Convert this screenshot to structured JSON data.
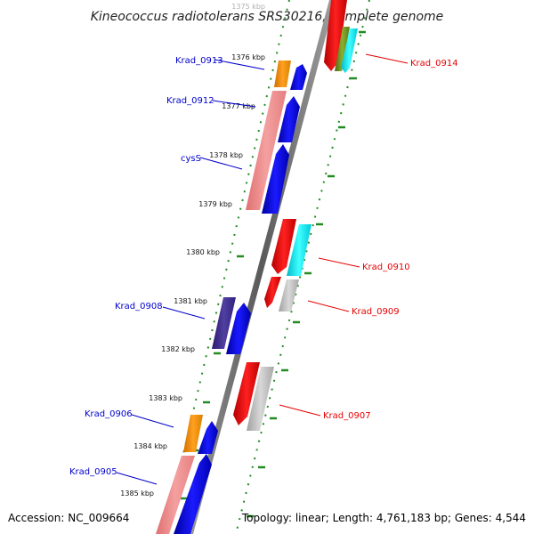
{
  "title": "Kineococcus radiotolerans SRS30216, complete genome",
  "accession": "Accession: NC_009664",
  "topology": "Topology: linear; Length: 4,761,183 bp; Genes: 4,544",
  "colors": {
    "forward_label": "#0000cc",
    "reverse_label": "#e60000",
    "tick": "#228b22",
    "backbone": "#808080"
  },
  "kbp_ticks": [
    {
      "id": "1375",
      "label": "1375 kbp"
    },
    {
      "id": "1376",
      "label": "1376 kbp"
    },
    {
      "id": "1377",
      "label": "1377 kbp"
    },
    {
      "id": "1378",
      "label": "1378 kbp"
    },
    {
      "id": "1379",
      "label": "1379 kbp"
    },
    {
      "id": "1380",
      "label": "1380 kbp"
    },
    {
      "id": "1381",
      "label": "1381 kbp"
    },
    {
      "id": "1382",
      "label": "1382 kbp"
    },
    {
      "id": "1383",
      "label": "1383 kbp"
    },
    {
      "id": "1384",
      "label": "1384 kbp"
    },
    {
      "id": "1385",
      "label": "1385 kbp"
    }
  ],
  "gene_labels": [
    {
      "id": "krad_0913",
      "name": "Krad_0913",
      "strand": "forward"
    },
    {
      "id": "krad_0912",
      "name": "Krad_0912",
      "strand": "forward"
    },
    {
      "id": "cyss",
      "name": "cysS",
      "strand": "forward"
    },
    {
      "id": "krad_0908",
      "name": "Krad_0908",
      "strand": "forward"
    },
    {
      "id": "krad_0906",
      "name": "Krad_0906",
      "strand": "forward"
    },
    {
      "id": "krad_0905",
      "name": "Krad_0905",
      "strand": "forward"
    },
    {
      "id": "krad_0914",
      "name": "Krad_0914",
      "strand": "reverse"
    },
    {
      "id": "krad_0910",
      "name": "Krad_0910",
      "strand": "reverse"
    },
    {
      "id": "krad_0909",
      "name": "Krad_0909",
      "strand": "reverse"
    },
    {
      "id": "krad_0907",
      "name": "Krad_0907",
      "strand": "reverse"
    }
  ]
}
